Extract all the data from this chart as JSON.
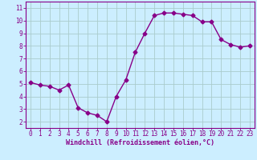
{
  "x": [
    0,
    1,
    2,
    3,
    4,
    5,
    6,
    7,
    8,
    9,
    10,
    11,
    12,
    13,
    14,
    15,
    16,
    17,
    18,
    19,
    20,
    21,
    22,
    23
  ],
  "y": [
    5.1,
    4.9,
    4.8,
    4.5,
    4.9,
    3.1,
    2.7,
    2.5,
    2.0,
    4.0,
    5.3,
    7.5,
    9.0,
    10.4,
    10.6,
    10.6,
    10.5,
    10.4,
    9.9,
    9.9,
    8.5,
    8.1,
    7.9,
    8.0
  ],
  "line_color": "#880088",
  "marker": "D",
  "marker_size": 2.5,
  "bg_color": "#cceeff",
  "grid_color": "#aacccc",
  "border_color": "#880088",
  "xlabel": "Windchill (Refroidissement éolien,°C)",
  "xlabel_color": "#880088",
  "tick_color": "#880088",
  "ylim": [
    1.5,
    11.5
  ],
  "xlim": [
    -0.5,
    23.5
  ],
  "yticks": [
    2,
    3,
    4,
    5,
    6,
    7,
    8,
    9,
    10,
    11
  ],
  "xticks": [
    0,
    1,
    2,
    3,
    4,
    5,
    6,
    7,
    8,
    9,
    10,
    11,
    12,
    13,
    14,
    15,
    16,
    17,
    18,
    19,
    20,
    21,
    22,
    23
  ]
}
